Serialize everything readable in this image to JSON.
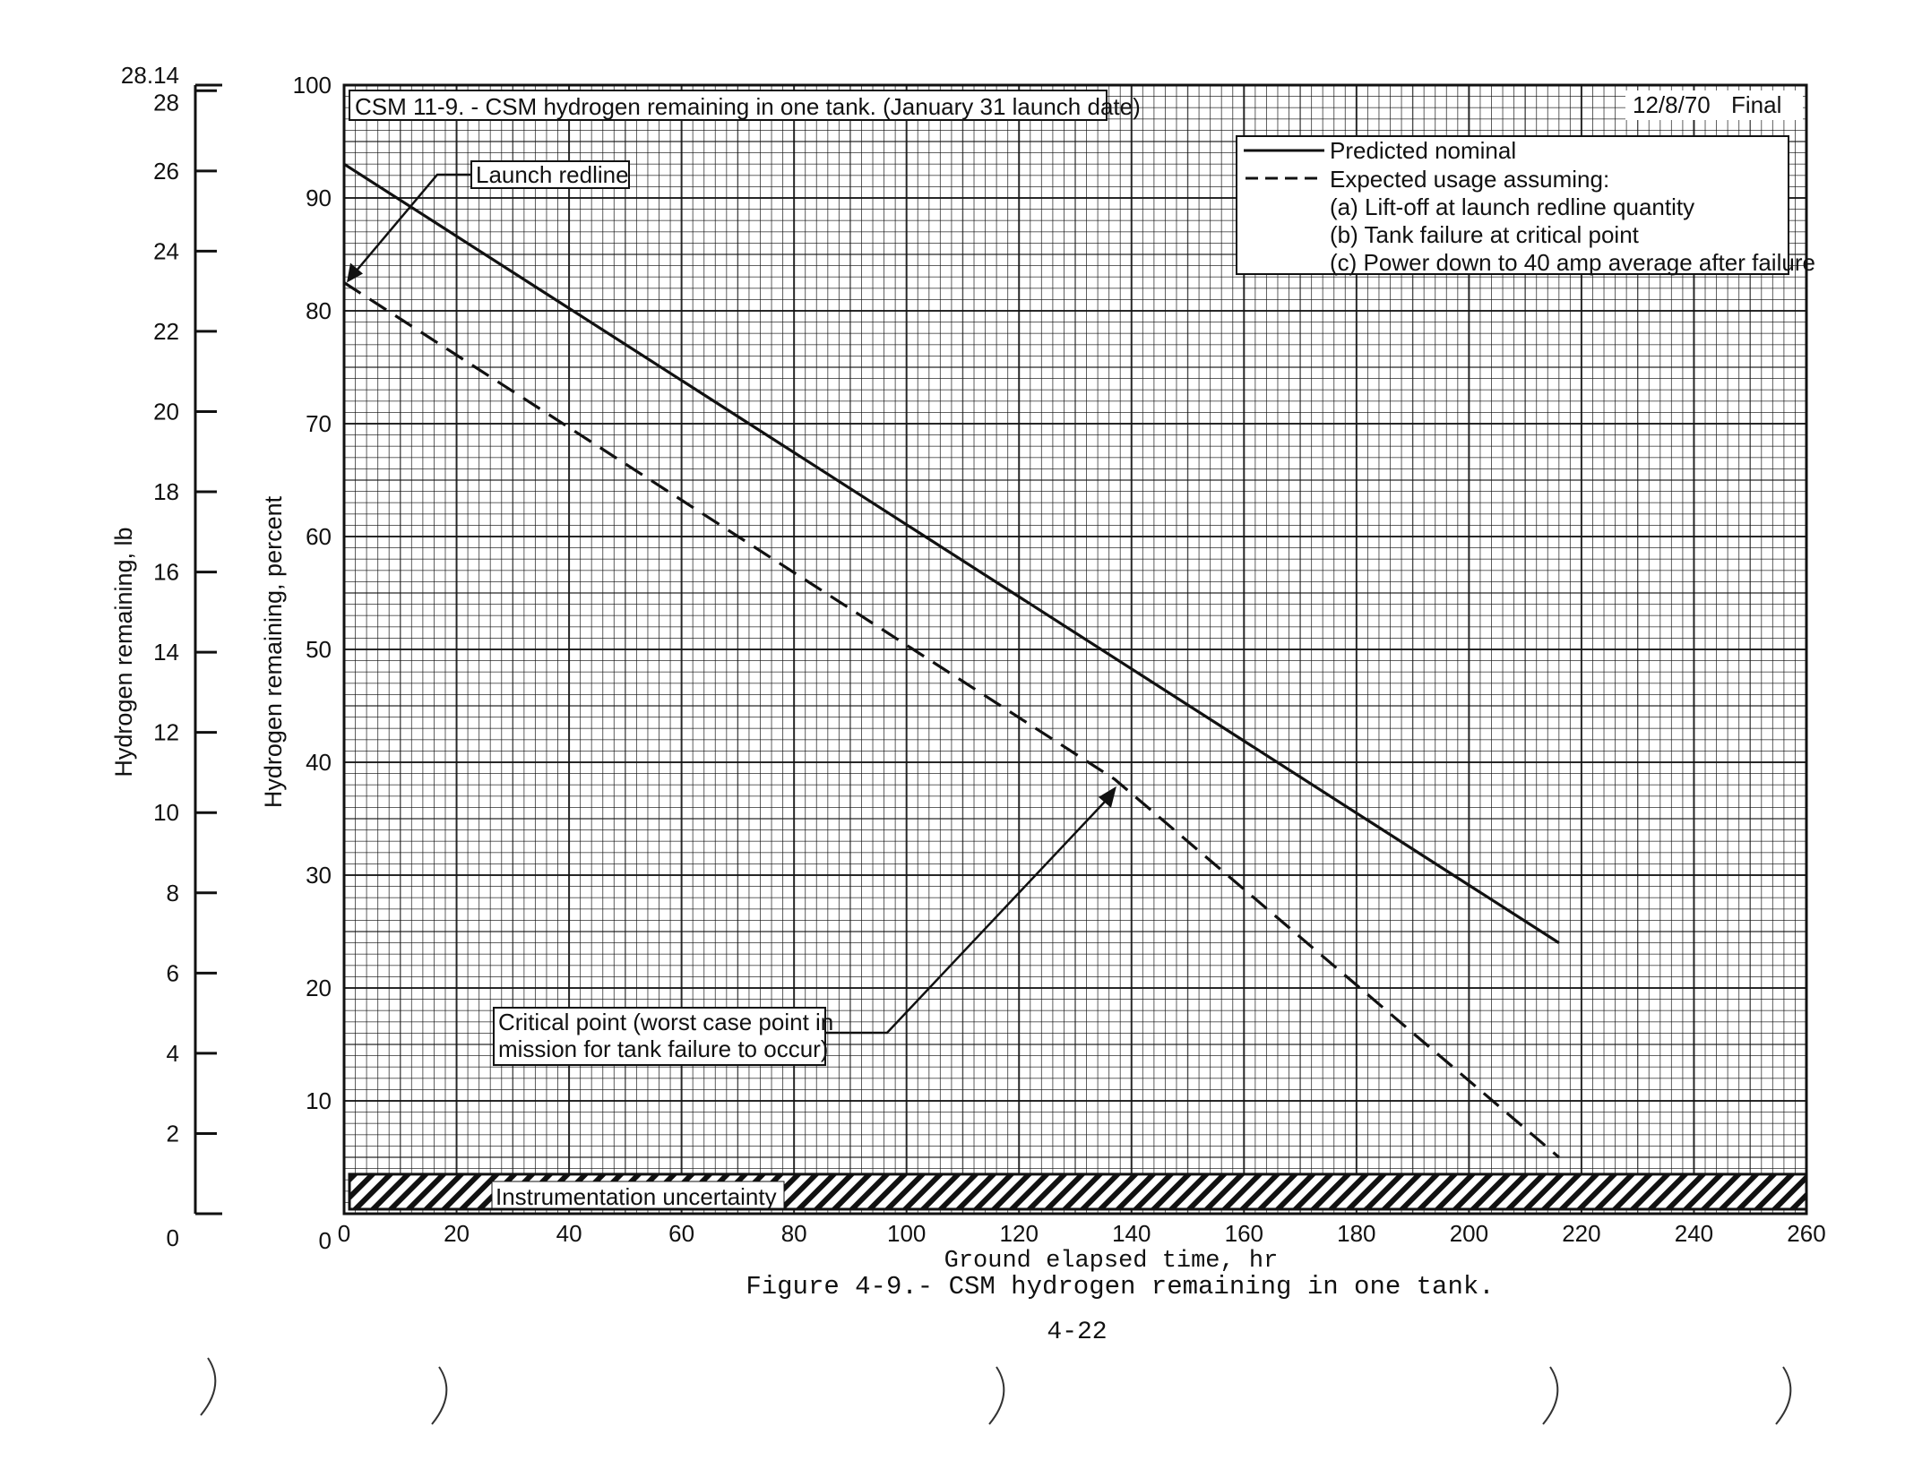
{
  "chart_data": {
    "type": "line",
    "title": "CSM 11-9. - CSM hydrogen remaining in one tank. (January 31 launch date)",
    "date": "12/8/70",
    "status": "Final",
    "xlabel": "Ground elapsed time, hr",
    "ylabel": "Hydrogen remaining, percent",
    "ylabel_secondary": "Hydrogen remaining, lb",
    "xlim": [
      0,
      260
    ],
    "ylim": [
      0,
      100
    ],
    "ylim_secondary": [
      0,
      28.14
    ],
    "grid": true,
    "x_ticks": [
      "0",
      "20",
      "40",
      "60",
      "80",
      "100",
      "120",
      "140",
      "160",
      "180",
      "200",
      "220",
      "240",
      "260"
    ],
    "y_ticks": [
      "10",
      "20",
      "30",
      "40",
      "50",
      "60",
      "70",
      "80",
      "90",
      "100"
    ],
    "y_ticks_secondary": [
      "0",
      "2",
      "4",
      "6",
      "8",
      "10",
      "12",
      "14",
      "16",
      "18",
      "20",
      "22",
      "24",
      "26",
      "28",
      "28.14"
    ],
    "series": [
      {
        "name": "Predicted nominal",
        "style": "solid",
        "x": [
          0,
          216
        ],
        "y": [
          93,
          24
        ]
      },
      {
        "name": "Expected usage assuming:",
        "style": "dashed",
        "x": [
          0,
          137,
          216
        ],
        "y": [
          82.5,
          38.5,
          5
        ]
      }
    ],
    "legend": {
      "placement": "top-right",
      "solid_label": "Predicted nominal",
      "dashed_label": "Expected usage assuming:",
      "conditions": [
        "(a) Lift-off at launch redline quantity",
        "(b) Tank failure at critical point",
        "(c) Power down to 40 amp average after failure"
      ]
    },
    "annotations": {
      "launch_redline": "Launch redline",
      "critical_point_line1": "Critical point (worst case point in",
      "critical_point_line2": "mission for tank failure to occur)",
      "instrumentation_uncertainty": "Instrumentation uncertainty",
      "uncertainty_band": [
        0.4,
        3.5
      ]
    },
    "caption": "Figure 4-9.- CSM hydrogen remaining in one tank.",
    "page_number": "4-22"
  }
}
